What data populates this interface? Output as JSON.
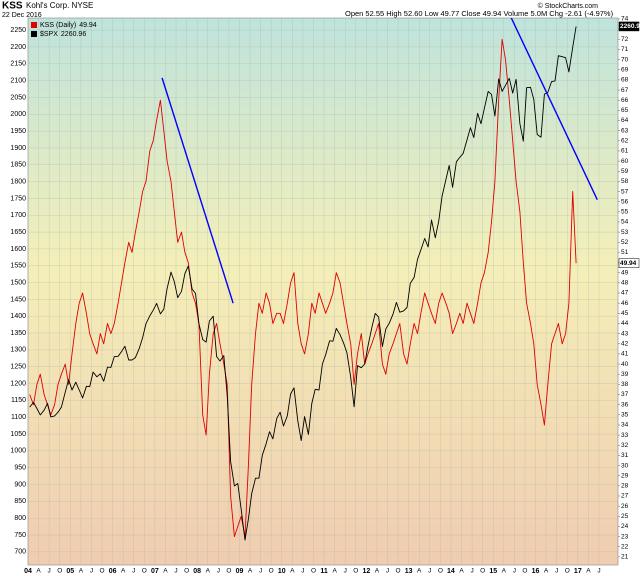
{
  "chart_data": {
    "type": "line",
    "ticker": "KSS",
    "company": "Kohl's Corp. NYSE",
    "date": "22 Dec 2016",
    "quote": "Open 52.55  High 52.60  Low 49.77  Close 49.94  Volume 5.0M  Chg -2.61 (-4.97%)",
    "credit": "© StockCharts.com",
    "x": [
      2004.04,
      2004.13,
      2004.21,
      2004.29,
      2004.38,
      2004.46,
      2004.54,
      2004.63,
      2004.71,
      2004.79,
      2004.88,
      2004.96,
      2005.04,
      2005.13,
      2005.21,
      2005.29,
      2005.38,
      2005.46,
      2005.54,
      2005.63,
      2005.71,
      2005.79,
      2005.88,
      2005.96,
      2006.04,
      2006.13,
      2006.21,
      2006.29,
      2006.38,
      2006.46,
      2006.54,
      2006.63,
      2006.71,
      2006.79,
      2006.88,
      2006.96,
      2007.04,
      2007.13,
      2007.21,
      2007.29,
      2007.38,
      2007.46,
      2007.54,
      2007.63,
      2007.71,
      2007.79,
      2007.88,
      2007.96,
      2008.04,
      2008.13,
      2008.21,
      2008.29,
      2008.38,
      2008.46,
      2008.54,
      2008.63,
      2008.71,
      2008.79,
      2008.88,
      2008.96,
      2009.04,
      2009.13,
      2009.21,
      2009.29,
      2009.38,
      2009.46,
      2009.54,
      2009.63,
      2009.71,
      2009.79,
      2009.88,
      2009.96,
      2010.04,
      2010.13,
      2010.21,
      2010.29,
      2010.38,
      2010.46,
      2010.54,
      2010.63,
      2010.71,
      2010.79,
      2010.88,
      2010.96,
      2011.04,
      2011.13,
      2011.21,
      2011.29,
      2011.38,
      2011.46,
      2011.54,
      2011.63,
      2011.71,
      2011.79,
      2011.88,
      2011.96,
      2012.04,
      2012.13,
      2012.21,
      2012.29,
      2012.38,
      2012.46,
      2012.54,
      2012.63,
      2012.71,
      2012.79,
      2012.88,
      2012.96,
      2013.04,
      2013.13,
      2013.21,
      2013.29,
      2013.38,
      2013.46,
      2013.54,
      2013.63,
      2013.71,
      2013.79,
      2013.88,
      2013.96,
      2014.04,
      2014.13,
      2014.21,
      2014.29,
      2014.38,
      2014.46,
      2014.54,
      2014.63,
      2014.71,
      2014.79,
      2014.88,
      2014.96,
      2015.04,
      2015.13,
      2015.21,
      2015.29,
      2015.38,
      2015.46,
      2015.54,
      2015.63,
      2015.71,
      2015.79,
      2015.88,
      2015.96,
      2016.04,
      2016.13,
      2016.21,
      2016.29,
      2016.38,
      2016.46,
      2016.54,
      2016.63,
      2016.71,
      2016.79,
      2016.88,
      2016.96
    ],
    "series": [
      {
        "name": "KSS (Daily)",
        "color": "#e00000",
        "axis": "y2",
        "values": [
          37,
          36,
          38,
          39,
          37,
          36,
          35,
          36,
          38,
          39,
          40,
          38,
          41,
          44,
          46,
          47,
          45,
          43,
          42,
          41,
          43,
          42,
          44,
          43,
          44,
          46,
          48,
          50,
          52,
          51,
          53,
          55,
          57,
          58,
          61,
          62,
          64,
          66,
          63,
          60,
          58,
          55,
          52,
          53,
          51,
          50,
          47,
          46,
          44,
          35,
          33,
          39,
          43,
          44,
          42,
          40,
          38,
          27,
          23,
          24,
          25,
          23,
          30,
          38,
          43,
          46,
          45,
          47,
          46,
          44,
          45,
          45,
          44,
          46,
          48,
          49,
          44,
          42,
          41,
          43,
          46,
          45,
          47,
          46,
          45,
          46,
          47,
          49,
          48,
          46,
          44,
          42,
          38,
          41,
          43,
          40,
          41,
          42,
          43,
          44,
          40,
          39,
          41,
          42,
          43,
          44,
          41,
          40,
          42,
          44,
          43,
          45,
          47,
          46,
          45,
          44,
          46,
          47,
          46,
          45,
          43,
          44,
          45,
          44,
          46,
          45,
          44,
          46,
          48,
          49,
          51,
          54,
          58,
          66,
          72,
          70,
          66,
          62,
          58,
          55,
          50,
          46,
          44,
          42,
          38,
          36,
          34,
          38,
          42,
          43,
          44,
          42,
          43,
          46,
          57,
          49.94
        ]
      },
      {
        "name": "$SPX",
        "color": "#000000",
        "values": [
          1130,
          1144,
          1126,
          1107,
          1121,
          1141,
          1101,
          1104,
          1115,
          1130,
          1174,
          1212,
          1181,
          1204,
          1181,
          1157,
          1192,
          1191,
          1234,
          1220,
          1229,
          1207,
          1249,
          1248,
          1280,
          1281,
          1295,
          1311,
          1270,
          1270,
          1277,
          1304,
          1336,
          1378,
          1401,
          1418,
          1438,
          1407,
          1421,
          1482,
          1531,
          1503,
          1455,
          1474,
          1527,
          1549,
          1481,
          1468,
          1378,
          1331,
          1323,
          1386,
          1400,
          1280,
          1267,
          1283,
          1165,
          969,
          896,
          903,
          826,
          735,
          798,
          873,
          919,
          919,
          987,
          1021,
          1057,
          1036,
          1096,
          1115,
          1074,
          1104,
          1169,
          1187,
          1089,
          1031,
          1102,
          1049,
          1141,
          1183,
          1181,
          1258,
          1286,
          1327,
          1326,
          1364,
          1345,
          1321,
          1292,
          1219,
          1131,
          1253,
          1247,
          1258,
          1312,
          1366,
          1408,
          1398,
          1310,
          1362,
          1379,
          1406,
          1441,
          1412,
          1416,
          1426,
          1498,
          1515,
          1569,
          1597,
          1631,
          1606,
          1686,
          1633,
          1682,
          1757,
          1806,
          1848,
          1783,
          1859,
          1872,
          1884,
          1924,
          1960,
          1931,
          2003,
          1972,
          2018,
          2068,
          2059,
          1995,
          2105,
          2068,
          2086,
          2107,
          2063,
          2104,
          1972,
          1920,
          2079,
          2080,
          2044,
          1940,
          1932,
          2060,
          2065,
          2097,
          2099,
          2174,
          2171,
          2168,
          2126,
          2199,
          2260.96
        ]
      }
    ],
    "trendlines": [
      {
        "color": "#0000ff",
        "axis": "y2",
        "x": [
          2007.17,
          2008.85
        ],
        "y": [
          68.2,
          46.0
        ]
      },
      {
        "color": "#0000ff",
        "axis": "y2",
        "x": [
          2015.28,
          2017.46
        ],
        "y": [
          75.4,
          56.2
        ]
      }
    ],
    "xlim": [
      2004.0,
      2017.95
    ],
    "ylim": [
      661,
      2286
    ],
    "y2lim": [
      20.2,
      74.1
    ],
    "yticks": [
      700,
      750,
      800,
      850,
      900,
      950,
      1000,
      1050,
      1100,
      1150,
      1200,
      1250,
      1300,
      1350,
      1400,
      1450,
      1500,
      1550,
      1600,
      1650,
      1700,
      1750,
      1800,
      1850,
      1900,
      1950,
      2000,
      2050,
      2100,
      2150,
      2200,
      2250
    ],
    "y2ticks": [
      21,
      22,
      23,
      24,
      25,
      26,
      27,
      28,
      29,
      30,
      31,
      32,
      33,
      34,
      35,
      36,
      37,
      38,
      39,
      40,
      41,
      42,
      43,
      44,
      45,
      46,
      47,
      48,
      49,
      50,
      51,
      52,
      53,
      54,
      55,
      56,
      57,
      58,
      59,
      60,
      61,
      62,
      63,
      64,
      65,
      66,
      67,
      68,
      69,
      70,
      71,
      72,
      73,
      74
    ],
    "xticks": [
      {
        "value": 2004,
        "label": "04"
      },
      {
        "value": 2004.25,
        "label": "A"
      },
      {
        "value": 2004.5,
        "label": "J"
      },
      {
        "value": 2004.75,
        "label": "O"
      },
      {
        "value": 2005,
        "label": "05"
      },
      {
        "value": 2005.25,
        "label": "A"
      },
      {
        "value": 2005.5,
        "label": "J"
      },
      {
        "value": 2005.75,
        "label": "O"
      },
      {
        "value": 2006,
        "label": "06"
      },
      {
        "value": 2006.25,
        "label": "A"
      },
      {
        "value": 2006.5,
        "label": "J"
      },
      {
        "value": 2006.75,
        "label": "O"
      },
      {
        "value": 2007,
        "label": "07"
      },
      {
        "value": 2007.25,
        "label": "A"
      },
      {
        "value": 2007.5,
        "label": "J"
      },
      {
        "value": 2007.75,
        "label": "O"
      },
      {
        "value": 2008,
        "label": "08"
      },
      {
        "value": 2008.25,
        "label": "A"
      },
      {
        "value": 2008.5,
        "label": "J"
      },
      {
        "value": 2008.75,
        "label": "O"
      },
      {
        "value": 2009,
        "label": "09"
      },
      {
        "value": 2009.25,
        "label": "A"
      },
      {
        "value": 2009.5,
        "label": "J"
      },
      {
        "value": 2009.75,
        "label": "O"
      },
      {
        "value": 2010,
        "label": "10"
      },
      {
        "value": 2010.25,
        "label": "A"
      },
      {
        "value": 2010.5,
        "label": "J"
      },
      {
        "value": 2010.75,
        "label": "O"
      },
      {
        "value": 2011,
        "label": "11"
      },
      {
        "value": 2011.25,
        "label": "A"
      },
      {
        "value": 2011.5,
        "label": "J"
      },
      {
        "value": 2011.75,
        "label": "O"
      },
      {
        "value": 2012,
        "label": "12"
      },
      {
        "value": 2012.25,
        "label": "A"
      },
      {
        "value": 2012.5,
        "label": "J"
      },
      {
        "value": 2012.75,
        "label": "O"
      },
      {
        "value": 2013,
        "label": "13"
      },
      {
        "value": 2013.25,
        "label": "A"
      },
      {
        "value": 2013.5,
        "label": "J"
      },
      {
        "value": 2013.75,
        "label": "O"
      },
      {
        "value": 2014,
        "label": "14"
      },
      {
        "value": 2014.25,
        "label": "A"
      },
      {
        "value": 2014.5,
        "label": "J"
      },
      {
        "value": 2014.75,
        "label": "O"
      },
      {
        "value": 2015,
        "label": "15"
      },
      {
        "value": 2015.25,
        "label": "A"
      },
      {
        "value": 2015.5,
        "label": "J"
      },
      {
        "value": 2015.75,
        "label": "O"
      },
      {
        "value": 2016,
        "label": "16"
      },
      {
        "value": 2016.25,
        "label": "A"
      },
      {
        "value": 2016.5,
        "label": "J"
      },
      {
        "value": 2016.75,
        "label": "O"
      },
      {
        "value": 2017,
        "label": "17"
      },
      {
        "value": 2017.25,
        "label": "A"
      },
      {
        "value": 2017.5,
        "label": "J"
      }
    ],
    "grid": true
  }
}
